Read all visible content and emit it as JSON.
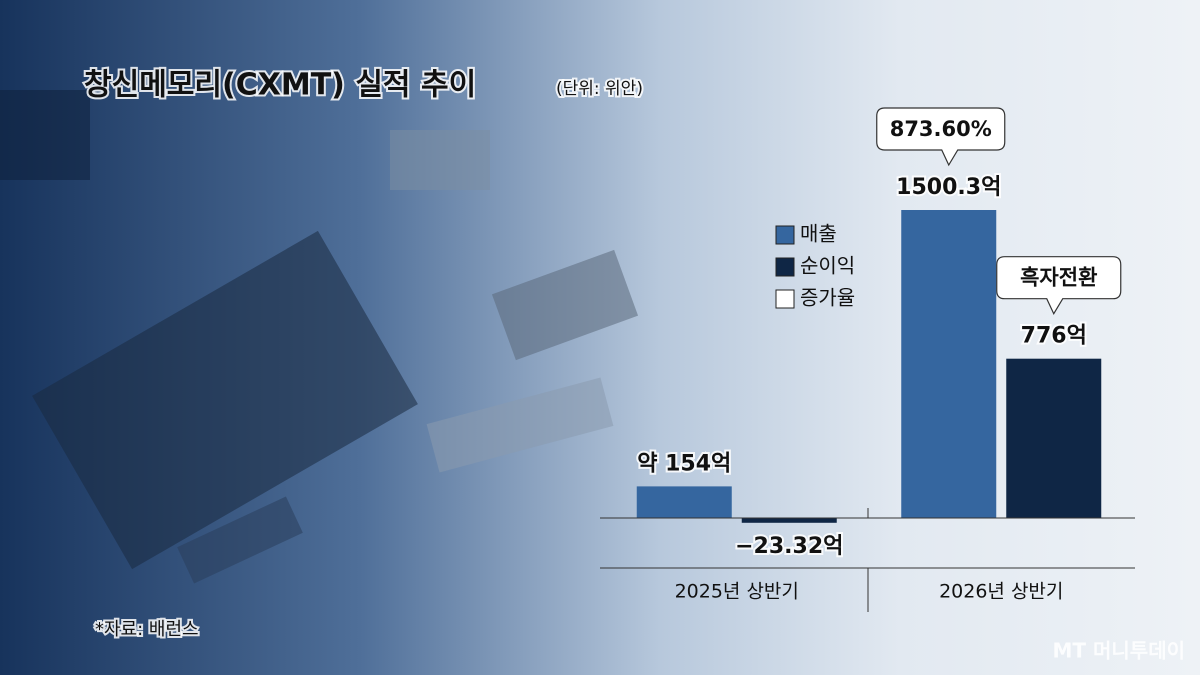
{
  "chart_data": {
    "type": "bar",
    "title": "창신메모리(CXMT) 실적 추이",
    "subtitle": "(단위: 위안)",
    "categories": [
      "2025년 상반기",
      "2026년 상반기"
    ],
    "series": [
      {
        "name": "매출",
        "color": "#35669f",
        "values": [
          154,
          1500.3
        ],
        "value_labels": [
          "약 154억",
          "1500.3억"
        ]
      },
      {
        "name": "순이익",
        "color": "#0f2645",
        "values": [
          -23.32,
          776
        ],
        "value_labels": [
          "−23.32억",
          "776억"
        ]
      }
    ],
    "legend_extra": {
      "name": "증가율",
      "color": "#ffffff"
    },
    "annotations": [
      {
        "text": "873.60%",
        "series": 0,
        "index": 1
      },
      {
        "text": "흑자전환",
        "series": 1,
        "index": 1
      }
    ],
    "source": "*자료: 배런스",
    "logo": "MT 머니투데이"
  }
}
